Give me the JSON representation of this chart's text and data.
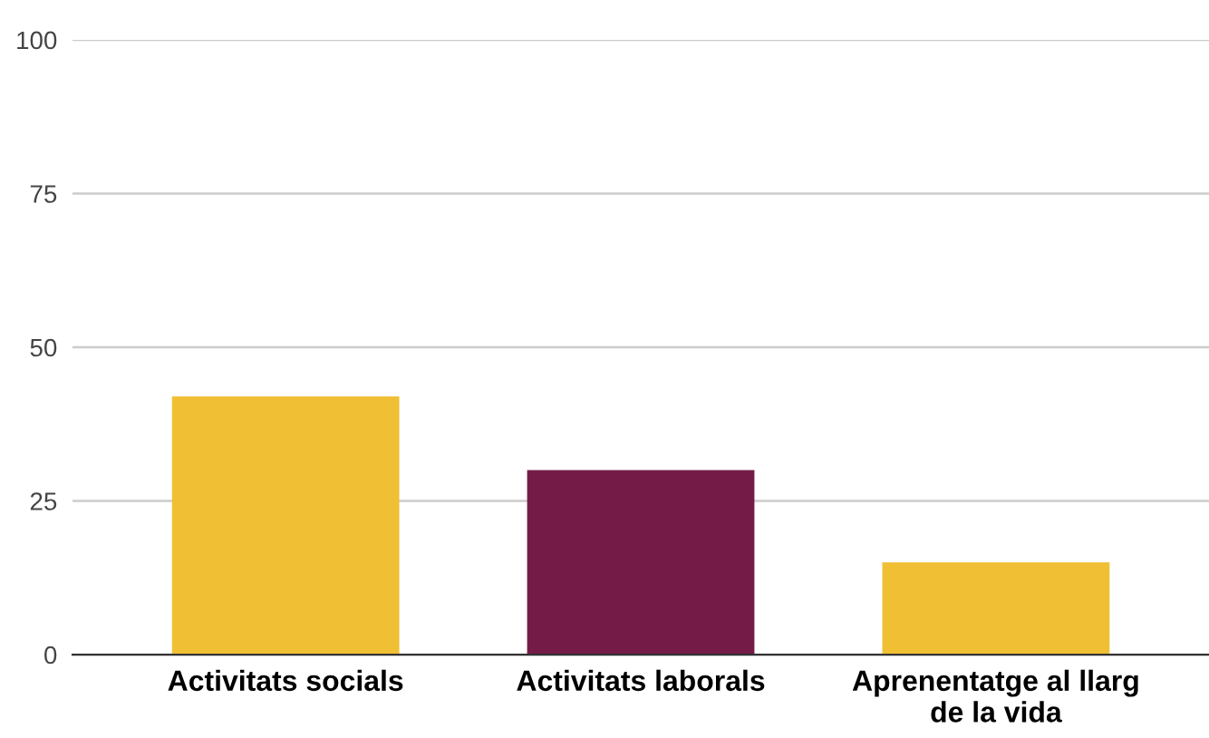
{
  "chart_data": {
    "type": "bar",
    "categories": [
      "Activitats socials",
      "Activitats laborals",
      "Aprenentatge al llarg\nde la vida"
    ],
    "values": [
      42,
      30,
      15
    ],
    "colors": [
      "#f0bf33",
      "#741b47",
      "#f0bf33"
    ],
    "ylim": [
      0,
      100
    ],
    "yticks": [
      0,
      25,
      50,
      75,
      100
    ],
    "grid": "y"
  }
}
